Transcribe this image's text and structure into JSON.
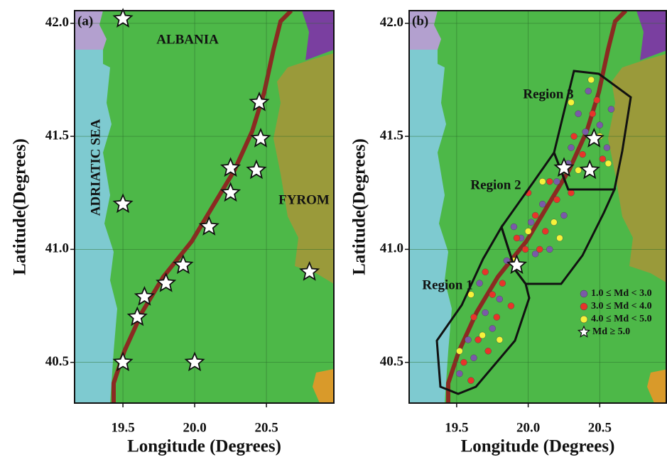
{
  "panels": [
    {
      "label": "(a)",
      "x_label": "Longitude (Degrees)",
      "y_label": "Latitude(Degrees)",
      "xlim": [
        19.163,
        20.97
      ],
      "ylim": [
        40.32,
        42.056
      ],
      "xticks": [
        19.5,
        {
          "value": 20,
          "label": "20.0"
        },
        20.5
      ],
      "yticks": [
        {
          "value": 40.5,
          "label": "40.5"
        },
        {
          "value": 41,
          "label": "41.0"
        },
        {
          "value": 41.5,
          "label": "41.5"
        },
        {
          "value": 42,
          "label": "42.0"
        }
      ],
      "annotations": [
        "ALBANIA",
        "ADRIATIC SEA",
        "FYROM"
      ],
      "stars": {
        "lon": [
          19.5,
          20.45,
          20.46,
          20.25,
          20.43,
          20.25,
          19.5,
          20.1,
          19.92,
          19.8,
          19.65,
          19.6,
          19.5,
          20.0,
          20.8
        ],
        "lat": [
          42.02,
          41.65,
          41.49,
          41.36,
          41.35,
          41.25,
          41.2,
          41.1,
          40.93,
          40.85,
          40.79,
          40.7,
          40.5,
          40.5,
          40.9
        ]
      }
    },
    {
      "label": "(b)",
      "x_label": "Longitude (Degrees)",
      "y_label": "Latitude(Degrees)",
      "xlim": [
        19.168,
        20.965
      ],
      "ylim": [
        40.32,
        42.056
      ],
      "xticks": [
        19.5,
        {
          "value": 20,
          "label": "20.0"
        },
        20.5
      ],
      "yticks": [
        {
          "value": 40.5,
          "label": "40.5"
        },
        {
          "value": 41,
          "label": "41.0"
        },
        {
          "value": 41.5,
          "label": "41.5"
        },
        {
          "value": 42,
          "label": "42.0"
        }
      ],
      "annotations": [
        "Region 1",
        "Region 2",
        "Region 3"
      ],
      "events": [
        {
          "name": "1.0 ≤ Md < 3.0",
          "color": "#7a5aa8",
          "lon": [
            19.52,
            19.58,
            19.62,
            19.7,
            19.75,
            19.66,
            19.8,
            19.85,
            19.95,
            20.02,
            20.1,
            20.15,
            20.2,
            20.05,
            19.9,
            20.25,
            20.3,
            20.35,
            20.42,
            20.5,
            20.55,
            20.28,
            20.4,
            20.58
          ],
          "lat": [
            40.45,
            40.6,
            40.52,
            40.72,
            40.65,
            40.85,
            40.78,
            40.95,
            41.05,
            41.12,
            41.2,
            41.0,
            41.3,
            40.98,
            41.1,
            41.15,
            41.45,
            41.6,
            41.7,
            41.55,
            41.45,
            41.38,
            41.52,
            41.62
          ]
        },
        {
          "name": "3.0 ≤ Md < 4.0",
          "color": "#e8342a",
          "lon": [
            19.55,
            19.6,
            19.65,
            19.72,
            19.78,
            19.7,
            19.82,
            19.88,
            19.98,
            20.05,
            20.12,
            20.2,
            19.92,
            20.0,
            20.15,
            20.3,
            20.32,
            20.45,
            20.52,
            20.38,
            20.48,
            19.62,
            19.75,
            20.08
          ],
          "lat": [
            40.5,
            40.42,
            40.6,
            40.55,
            40.7,
            40.9,
            40.85,
            40.75,
            41.0,
            41.15,
            41.08,
            41.22,
            41.05,
            41.25,
            41.3,
            41.25,
            41.5,
            41.6,
            41.4,
            41.42,
            41.66,
            40.7,
            40.8,
            41.0
          ]
        },
        {
          "name": "4.0 ≤ Md < 5.0",
          "color": "#f6f23a",
          "lon": [
            19.52,
            19.68,
            19.8,
            19.6,
            19.9,
            20.0,
            20.18,
            20.1,
            20.22,
            20.35,
            20.44,
            20.5,
            20.56,
            20.3
          ],
          "lat": [
            40.55,
            40.62,
            40.6,
            40.8,
            40.95,
            41.08,
            41.12,
            41.3,
            41.05,
            41.35,
            41.75,
            41.5,
            41.38,
            41.65
          ]
        }
      ],
      "stars": {
        "name": "Md ≥ 5.0",
        "lon": [
          20.46,
          20.25,
          20.43,
          19.92
        ],
        "lat": [
          41.49,
          41.36,
          41.35,
          40.93
        ]
      }
    }
  ]
}
